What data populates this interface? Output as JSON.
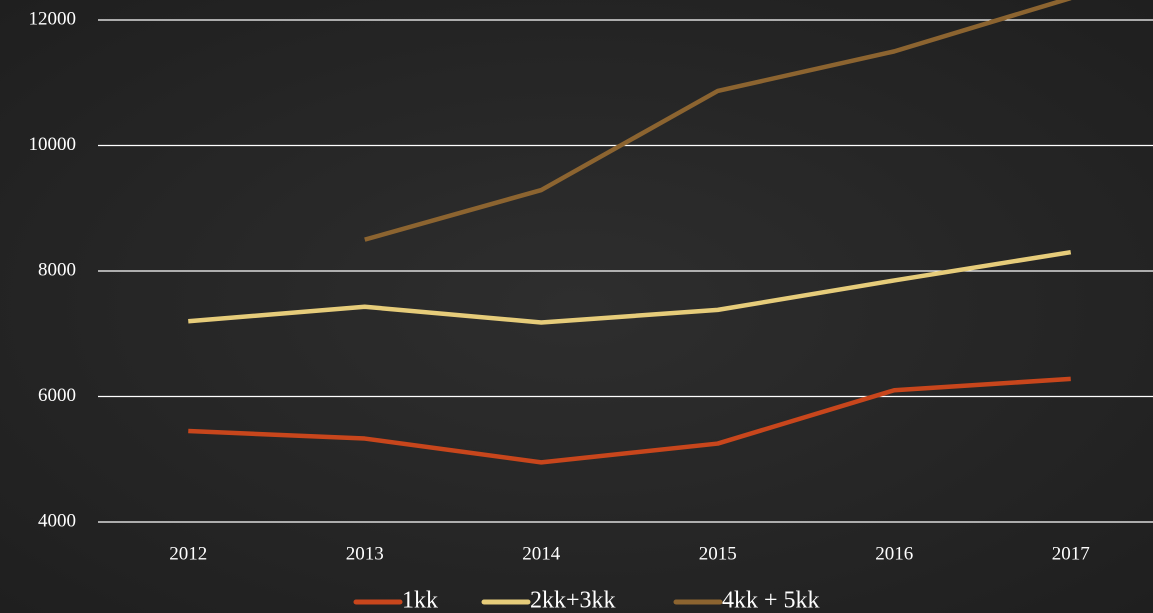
{
  "chart_data": {
    "type": "line",
    "categories": [
      "2012",
      "2013",
      "2014",
      "2015",
      "2016",
      "2017"
    ],
    "series": [
      {
        "name": "1kk",
        "color": "#c8461c",
        "values": [
          5450,
          5330,
          4950,
          5250,
          6100,
          6280
        ]
      },
      {
        "name": "2kk+3kk",
        "color": "#e6cc7a",
        "values": [
          7200,
          7430,
          7180,
          7380,
          7850,
          8300
        ]
      },
      {
        "name": "4kk + 5kk",
        "color": "#8c6430",
        "values": [
          null,
          8500,
          9290,
          10870,
          11500,
          12350
        ]
      }
    ],
    "ylim": [
      4000,
      12000
    ],
    "yticks": [
      4000,
      6000,
      8000,
      10000,
      12000
    ],
    "grid": true,
    "legend": "bottom"
  }
}
